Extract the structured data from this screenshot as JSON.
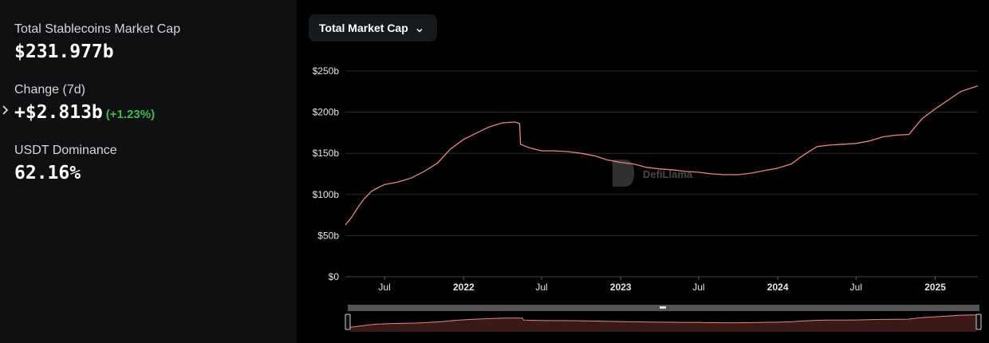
{
  "stats": {
    "total_label": "Total Stablecoins Market Cap",
    "total_value": "$231.977b",
    "change_label": "Change (7d)",
    "change_value": "+$2.813b",
    "change_pct": "(+1.23%)",
    "dominance_label": "USDT Dominance",
    "dominance_value": "62.16%"
  },
  "dropdown": {
    "label": "Total Market Cap",
    "icon": "chevron-down-icon"
  },
  "watermark": {
    "text": "DefiLlama"
  },
  "colors": {
    "line": "#e8867c",
    "positive": "#3fb950",
    "grid": "#2a2a2a",
    "panel": "#0e1012",
    "brush": "#4a4a4a"
  },
  "chart_data": {
    "type": "line",
    "title": "",
    "xlabel": "",
    "ylabel": "",
    "ylim": [
      0,
      250
    ],
    "y_unit": "billions USD",
    "y_ticks": [
      "$0",
      "$50b",
      "$100b",
      "$150b",
      "$200b",
      "$250b"
    ],
    "x_ticks": [
      {
        "label": "Jul",
        "date": "2021-07-01",
        "bold": false
      },
      {
        "label": "2022",
        "date": "2022-01-01",
        "bold": true
      },
      {
        "label": "Jul",
        "date": "2022-07-01",
        "bold": false
      },
      {
        "label": "2023",
        "date": "2023-01-01",
        "bold": true
      },
      {
        "label": "Jul",
        "date": "2023-07-01",
        "bold": false
      },
      {
        "label": "2024",
        "date": "2024-01-01",
        "bold": true
      },
      {
        "label": "Jul",
        "date": "2024-07-01",
        "bold": false
      },
      {
        "label": "2025",
        "date": "2025-01-01",
        "bold": true
      }
    ],
    "xlim": [
      "2021-04-01",
      "2025-04-10"
    ],
    "grid": true,
    "series": [
      {
        "values": [
          [
            "2021-04-01",
            63
          ],
          [
            "2021-04-15",
            72
          ],
          [
            "2021-05-01",
            85
          ],
          [
            "2021-05-15",
            95
          ],
          [
            "2021-06-01",
            104
          ],
          [
            "2021-06-15",
            108
          ],
          [
            "2021-07-01",
            112
          ],
          [
            "2021-08-01",
            115
          ],
          [
            "2021-09-01",
            120
          ],
          [
            "2021-10-01",
            128
          ],
          [
            "2021-11-01",
            138
          ],
          [
            "2021-12-01",
            155
          ],
          [
            "2022-01-01",
            167
          ],
          [
            "2022-02-01",
            175
          ],
          [
            "2022-03-01",
            182
          ],
          [
            "2022-04-01",
            187
          ],
          [
            "2022-05-01",
            188
          ],
          [
            "2022-05-11",
            186
          ],
          [
            "2022-05-13",
            161
          ],
          [
            "2022-06-01",
            157
          ],
          [
            "2022-07-01",
            153
          ],
          [
            "2022-08-01",
            153
          ],
          [
            "2022-09-01",
            152
          ],
          [
            "2022-10-01",
            150
          ],
          [
            "2022-11-01",
            147
          ],
          [
            "2022-12-01",
            142
          ],
          [
            "2023-01-01",
            139
          ],
          [
            "2023-02-01",
            137
          ],
          [
            "2023-03-01",
            133
          ],
          [
            "2023-04-01",
            131
          ],
          [
            "2023-05-01",
            130
          ],
          [
            "2023-06-01",
            128
          ],
          [
            "2023-07-01",
            127
          ],
          [
            "2023-08-01",
            125
          ],
          [
            "2023-09-01",
            124
          ],
          [
            "2023-10-01",
            124
          ],
          [
            "2023-11-01",
            126
          ],
          [
            "2023-12-01",
            129
          ],
          [
            "2024-01-01",
            132
          ],
          [
            "2024-02-01",
            137
          ],
          [
            "2024-03-01",
            148
          ],
          [
            "2024-04-01",
            158
          ],
          [
            "2024-05-01",
            160
          ],
          [
            "2024-06-01",
            161
          ],
          [
            "2024-07-01",
            162
          ],
          [
            "2024-08-01",
            165
          ],
          [
            "2024-09-01",
            170
          ],
          [
            "2024-10-01",
            172
          ],
          [
            "2024-11-01",
            173
          ],
          [
            "2024-12-01",
            192
          ],
          [
            "2025-01-01",
            204
          ],
          [
            "2025-02-01",
            215
          ],
          [
            "2025-03-01",
            225
          ],
          [
            "2025-04-10",
            232
          ]
        ]
      }
    ]
  }
}
